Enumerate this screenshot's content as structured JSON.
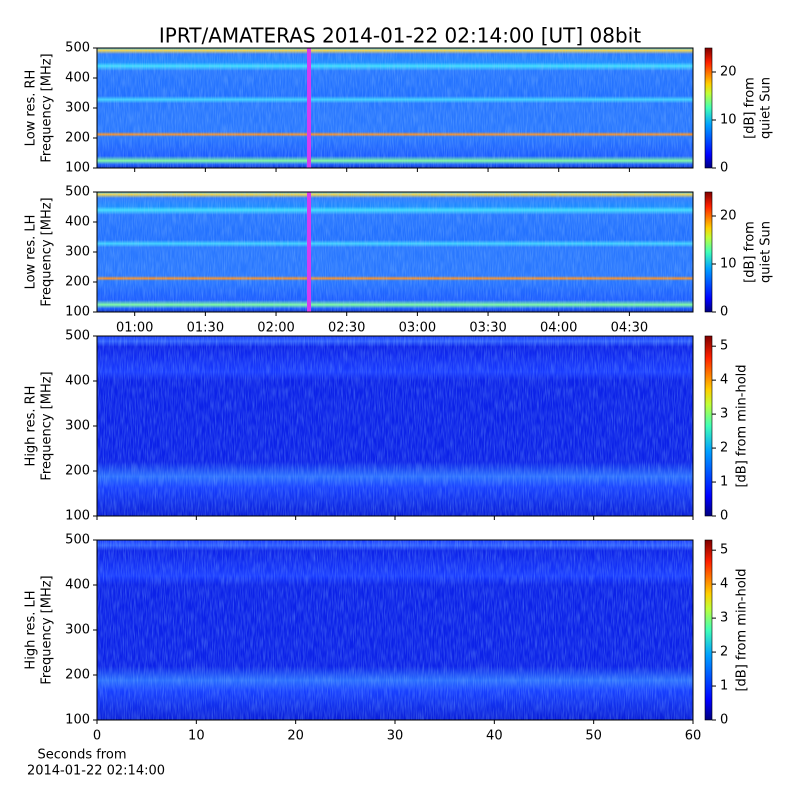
{
  "title": "IPRT/AMATERAS 2014-01-22 02:14:00 [UT]   08bit",
  "chart_data": [
    {
      "type": "heatmap",
      "colormap": "jet",
      "ylabel": [
        "Low res. RH",
        "Frequency [MHz]"
      ],
      "ylim": [
        100,
        500
      ],
      "yticks": [
        100,
        200,
        300,
        400,
        500
      ],
      "xlim": [
        44,
        297
      ],
      "xticks": [
        60,
        90,
        120,
        150,
        180,
        210,
        240,
        270
      ],
      "xticklabels": false,
      "marker_x": 134,
      "marker_color": "#d63cf0",
      "colorbar": {
        "label": [
          "[dB] from",
          "quiet Sun"
        ],
        "lim": [
          0,
          25
        ],
        "ticks": [
          0,
          10,
          20
        ]
      }
    },
    {
      "type": "heatmap",
      "colormap": "jet",
      "ylabel": [
        "Low res. LH",
        "Frequency [MHz]"
      ],
      "ylim": [
        100,
        500
      ],
      "yticks": [
        100,
        200,
        300,
        400,
        500
      ],
      "xlim": [
        44,
        297
      ],
      "xticks": [
        {
          "value": 60,
          "label": "01:00"
        },
        {
          "value": 90,
          "label": "01:30"
        },
        {
          "value": 120,
          "label": "02:00"
        },
        {
          "value": 150,
          "label": "02:30"
        },
        {
          "value": 180,
          "label": "03:00"
        },
        {
          "value": 210,
          "label": "03:30"
        },
        {
          "value": 240,
          "label": "04:00"
        },
        {
          "value": 270,
          "label": "04:30"
        }
      ],
      "marker_x": 134,
      "marker_color": "#d63cf0",
      "colorbar": {
        "label": [
          "[dB] from",
          "quiet Sun"
        ],
        "lim": [
          0,
          25
        ],
        "ticks": [
          0,
          10,
          20
        ]
      }
    },
    {
      "type": "heatmap",
      "colormap": "jet",
      "ylabel": [
        "High res. RH",
        "Frequency [MHz]"
      ],
      "ylim": [
        100,
        500
      ],
      "yticks": [
        100,
        200,
        300,
        400,
        500
      ],
      "xlim": [
        0,
        60
      ],
      "xticks": [
        0,
        10,
        20,
        30,
        40,
        50,
        60
      ],
      "xticklabels": false,
      "colorbar": {
        "label": [
          "[dB] from min-hold"
        ],
        "lim": [
          0,
          5.3
        ],
        "ticks": [
          0,
          1,
          2,
          3,
          4,
          5
        ]
      }
    },
    {
      "type": "heatmap",
      "colormap": "jet",
      "ylabel": [
        "High res. LH",
        "Frequency [MHz]"
      ],
      "ylim": [
        100,
        500
      ],
      "yticks": [
        100,
        200,
        300,
        400,
        500
      ],
      "xlim": [
        0,
        60
      ],
      "xticks": [
        0,
        10,
        20,
        30,
        40,
        50,
        60
      ],
      "xlabel": [
        "Seconds from",
        "2014-01-22 02:14:00"
      ],
      "colorbar": {
        "label": [
          "[dB] from min-hold"
        ],
        "lim": [
          0,
          5.3
        ],
        "ticks": [
          0,
          1,
          2,
          3,
          4,
          5
        ]
      }
    }
  ]
}
